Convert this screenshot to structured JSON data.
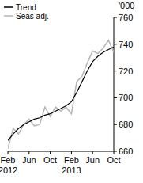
{
  "chart_data": {
    "type": "line",
    "y_label": "'000",
    "categories": [
      "Feb 2012",
      null,
      null,
      null,
      "Jun",
      null,
      null,
      null,
      "Oct",
      null,
      null,
      null,
      "Feb 2013",
      null,
      null,
      null,
      "Jun",
      null,
      null,
      null,
      "Oct"
    ],
    "series": [
      {
        "name": "Trend",
        "color": "#000000",
        "values": [
          668,
          673,
          677,
          680,
          682,
          684,
          685,
          687,
          688,
          690,
          692,
          694,
          697,
          704,
          712,
          720,
          727,
          731,
          734,
          736,
          738
        ]
      },
      {
        "name": "Seas adj.",
        "color": "#b4b4b4",
        "values": [
          662,
          677,
          673,
          680,
          684,
          679,
          680,
          693,
          686,
          693,
          690,
          693,
          688,
          712,
          716,
          726,
          735,
          733,
          737,
          743,
          734
        ]
      }
    ],
    "ylim": [
      660,
      760
    ],
    "yticks": [
      660,
      680,
      700,
      720,
      740,
      760
    ],
    "grid": false,
    "legend": "top-left"
  }
}
